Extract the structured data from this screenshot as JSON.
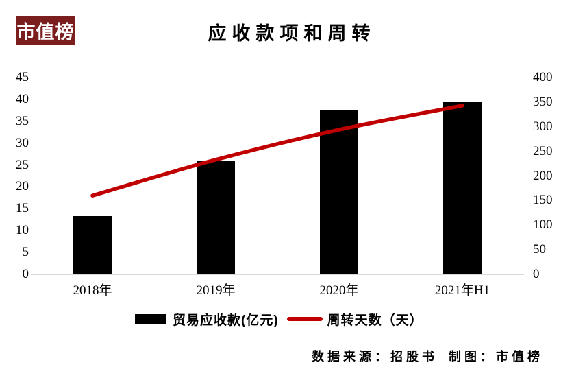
{
  "logo": {
    "text": "市值榜"
  },
  "title": "应收款项和周转",
  "chart_data": {
    "type": "bar",
    "subtype": "bar+line combo, dual axis",
    "title": "应收款项和周转",
    "categories": [
      "2018年",
      "2019年",
      "2020年",
      "2021年H1"
    ],
    "series": [
      {
        "name": "贸易应收款(亿元)",
        "type": "bar",
        "axis": "left",
        "color": "#000000",
        "values": [
          13.3,
          26.0,
          37.6,
          39.3
        ]
      },
      {
        "name": "周转天数（天）",
        "type": "line",
        "axis": "right",
        "color": "#C00000",
        "values": [
          160,
          233,
          294,
          343
        ]
      }
    ],
    "left_axis": {
      "min": 0,
      "max": 45,
      "step": 5,
      "ticks": [
        0,
        5,
        10,
        15,
        20,
        25,
        30,
        35,
        40,
        45
      ]
    },
    "right_axis": {
      "min": 0,
      "max": 400,
      "step": 50,
      "ticks": [
        0,
        50,
        100,
        150,
        200,
        250,
        300,
        350,
        400
      ]
    },
    "grid": false,
    "legend_position": "bottom"
  },
  "footer": {
    "source": "数据来源：招股书",
    "credit": "制图：市值榜"
  },
  "colors": {
    "bar": "#000000",
    "line": "#C00000",
    "logo_bg": "#7B1E1E",
    "baseline": "#D9D9D9"
  }
}
